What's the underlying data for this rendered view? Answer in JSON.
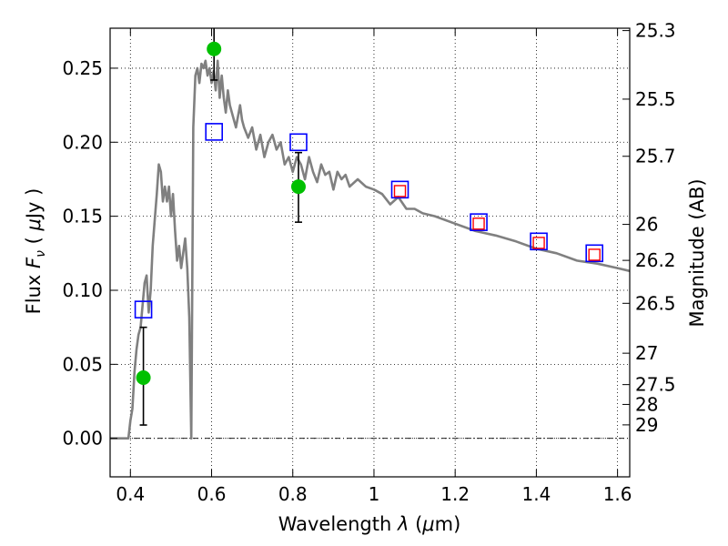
{
  "chart_data": {
    "type": "scatter",
    "title": "",
    "xlabel": "Wavelength  λ (μm)",
    "ylabel": "Flux  Fν  ( μJy )",
    "y2label": "Magnitude (AB)",
    "xlim": [
      0.35,
      1.63
    ],
    "ylim": [
      -0.026,
      0.277
    ],
    "grid": true,
    "legend": "none",
    "x_ticks": [
      0.4,
      0.6,
      0.8,
      1.0,
      1.2,
      1.4,
      1.6
    ],
    "x_tick_labels": [
      "0.4",
      "0.6",
      "0.8",
      "1",
      "1.2",
      "1.4",
      "1.6"
    ],
    "y_ticks": [
      0.0,
      0.05,
      0.1,
      0.15,
      0.2,
      0.25
    ],
    "y_tick_labels": [
      "0.00",
      "0.05",
      "0.10",
      "0.15",
      "0.20",
      "0.25"
    ],
    "y2_ticks": [
      {
        "label": "25.3",
        "flux": 0.2754
      },
      {
        "label": "25.5",
        "flux": 0.2291
      },
      {
        "label": "25.7",
        "flux": 0.1905
      },
      {
        "label": "26",
        "flux": 0.1445
      },
      {
        "label": "26.2",
        "flux": 0.1202
      },
      {
        "label": "26.5",
        "flux": 0.0912
      },
      {
        "label": "27",
        "flux": 0.0575
      },
      {
        "label": "27.5",
        "flux": 0.0363
      },
      {
        "label": "28",
        "flux": 0.0229
      },
      {
        "label": "29",
        "flux": 0.0091
      }
    ],
    "model_spectrum": {
      "color": "#808080",
      "x": [
        0.35,
        0.395,
        0.4,
        0.405,
        0.41,
        0.415,
        0.42,
        0.425,
        0.43,
        0.435,
        0.44,
        0.445,
        0.45,
        0.455,
        0.46,
        0.465,
        0.47,
        0.475,
        0.48,
        0.485,
        0.49,
        0.495,
        0.5,
        0.505,
        0.51,
        0.515,
        0.52,
        0.525,
        0.53,
        0.535,
        0.54,
        0.545,
        0.55,
        0.555,
        0.56,
        0.565,
        0.57,
        0.575,
        0.58,
        0.585,
        0.59,
        0.595,
        0.6,
        0.605,
        0.61,
        0.615,
        0.62,
        0.625,
        0.63,
        0.635,
        0.64,
        0.645,
        0.65,
        0.66,
        0.67,
        0.675,
        0.68,
        0.69,
        0.7,
        0.71,
        0.72,
        0.73,
        0.74,
        0.75,
        0.76,
        0.77,
        0.78,
        0.79,
        0.8,
        0.81,
        0.82,
        0.83,
        0.84,
        0.85,
        0.86,
        0.87,
        0.88,
        0.89,
        0.9,
        0.91,
        0.92,
        0.93,
        0.94,
        0.96,
        0.98,
        1.0,
        1.02,
        1.04,
        1.06,
        1.08,
        1.1,
        1.12,
        1.15,
        1.2,
        1.25,
        1.3,
        1.35,
        1.4,
        1.45,
        1.5,
        1.55,
        1.6,
        1.63
      ],
      "y": [
        0.0,
        0.0,
        0.012,
        0.02,
        0.045,
        0.06,
        0.07,
        0.075,
        0.09,
        0.105,
        0.11,
        0.085,
        0.1,
        0.13,
        0.148,
        0.165,
        0.185,
        0.18,
        0.16,
        0.17,
        0.16,
        0.17,
        0.15,
        0.165,
        0.14,
        0.12,
        0.13,
        0.115,
        0.125,
        0.135,
        0.115,
        0.082,
        0.0,
        0.21,
        0.245,
        0.25,
        0.24,
        0.253,
        0.25,
        0.255,
        0.245,
        0.25,
        0.24,
        0.248,
        0.235,
        0.255,
        0.23,
        0.245,
        0.23,
        0.22,
        0.235,
        0.225,
        0.22,
        0.21,
        0.225,
        0.215,
        0.21,
        0.203,
        0.21,
        0.195,
        0.205,
        0.19,
        0.2,
        0.205,
        0.195,
        0.2,
        0.185,
        0.19,
        0.18,
        0.19,
        0.185,
        0.175,
        0.19,
        0.18,
        0.173,
        0.185,
        0.178,
        0.18,
        0.168,
        0.18,
        0.175,
        0.178,
        0.17,
        0.175,
        0.17,
        0.168,
        0.165,
        0.158,
        0.163,
        0.155,
        0.155,
        0.152,
        0.15,
        0.145,
        0.14,
        0.137,
        0.133,
        0.128,
        0.125,
        0.12,
        0.118,
        0.115,
        0.113
      ]
    },
    "observed": {
      "color": "#00c000",
      "points": [
        {
          "x": 0.432,
          "y": 0.041,
          "yerr_low": 0.009,
          "yerr_high": 0.075
        },
        {
          "x": 0.606,
          "y": 0.263,
          "yerr_low": 0.242,
          "yerr_high": 0.277
        },
        {
          "x": 0.814,
          "y": 0.17,
          "yerr_low": 0.146,
          "yerr_high": 0.193
        }
      ]
    },
    "model_blue": {
      "color": "#0000ff",
      "points": [
        {
          "x": 0.432,
          "y": 0.087
        },
        {
          "x": 0.606,
          "y": 0.207
        },
        {
          "x": 0.814,
          "y": 0.2
        },
        {
          "x": 1.064,
          "y": 0.168
        },
        {
          "x": 1.258,
          "y": 0.146
        },
        {
          "x": 1.406,
          "y": 0.133
        },
        {
          "x": 1.543,
          "y": 0.125
        }
      ]
    },
    "model_red": {
      "color": "#ff0000",
      "points": [
        {
          "x": 1.064,
          "y": 0.167
        },
        {
          "x": 1.258,
          "y": 0.145
        },
        {
          "x": 1.406,
          "y": 0.132
        },
        {
          "x": 1.543,
          "y": 0.124
        }
      ]
    }
  }
}
